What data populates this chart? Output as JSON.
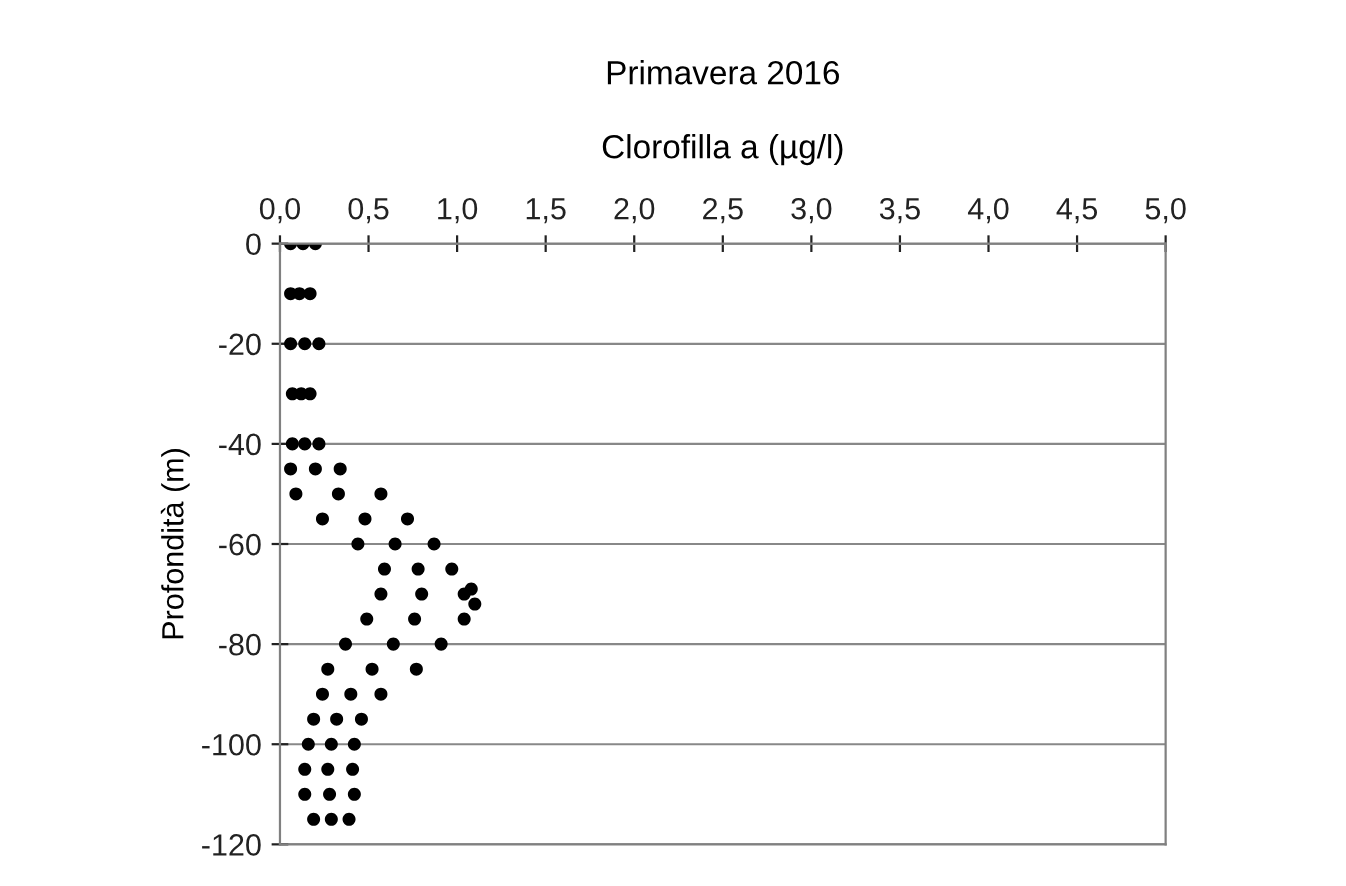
{
  "chart_data": {
    "type": "scatter",
    "title": "Primavera 2016",
    "xlabel": "Clorofilla a (µg/l)",
    "ylabel": "Profondità (m)",
    "x": [
      0.06,
      0.13,
      0.2,
      0.06,
      0.11,
      0.17,
      0.06,
      0.14,
      0.22,
      0.07,
      0.12,
      0.17,
      0.07,
      0.14,
      0.22,
      0.06,
      0.2,
      0.34,
      0.09,
      0.33,
      0.57,
      0.24,
      0.48,
      0.72,
      0.44,
      0.65,
      0.87,
      0.59,
      0.78,
      0.97,
      0.57,
      0.8,
      1.04,
      0.49,
      0.76,
      1.04,
      0.37,
      0.64,
      0.91,
      0.27,
      0.52,
      0.77,
      0.24,
      0.4,
      0.57,
      0.19,
      0.32,
      0.46,
      0.16,
      0.29,
      0.42,
      0.14,
      0.27,
      0.41,
      0.14,
      0.28,
      0.42,
      0.19,
      0.29,
      0.39,
      1.1,
      1.08
    ],
    "values": [
      0,
      0,
      0,
      -10,
      -10,
      -10,
      -20,
      -20,
      -20,
      -30,
      -30,
      -30,
      -40,
      -40,
      -40,
      -45,
      -45,
      -45,
      -50,
      -50,
      -50,
      -55,
      -55,
      -55,
      -60,
      -60,
      -60,
      -65,
      -65,
      -65,
      -70,
      -70,
      -70,
      -75,
      -75,
      -75,
      -80,
      -80,
      -80,
      -85,
      -85,
      -85,
      -90,
      -90,
      -90,
      -95,
      -95,
      -95,
      -100,
      -100,
      -100,
      -105,
      -105,
      -105,
      -110,
      -110,
      -110,
      -115,
      -115,
      -115,
      -72,
      -69
    ],
    "color": "#000000",
    "marker": "circle",
    "grid": "y",
    "legend": false,
    "xlim": [
      0,
      5
    ],
    "xticks": [
      {
        "value": 0,
        "label": "0,0"
      },
      {
        "value": 0.5,
        "label": "0,5"
      },
      {
        "value": 1,
        "label": "1,0"
      },
      {
        "value": 1.5,
        "label": "1,5"
      },
      {
        "value": 2,
        "label": "2,0"
      },
      {
        "value": 2.5,
        "label": "2,5"
      },
      {
        "value": 3,
        "label": "3,0"
      },
      {
        "value": 3.5,
        "label": "3,5"
      },
      {
        "value": 4,
        "label": "4,0"
      },
      {
        "value": 4.5,
        "label": "4,5"
      },
      {
        "value": 5,
        "label": "5,0"
      }
    ],
    "ylim": [
      -120,
      0
    ],
    "yticks": [
      0,
      -20,
      -40,
      -60,
      -80,
      -100,
      -120
    ]
  }
}
